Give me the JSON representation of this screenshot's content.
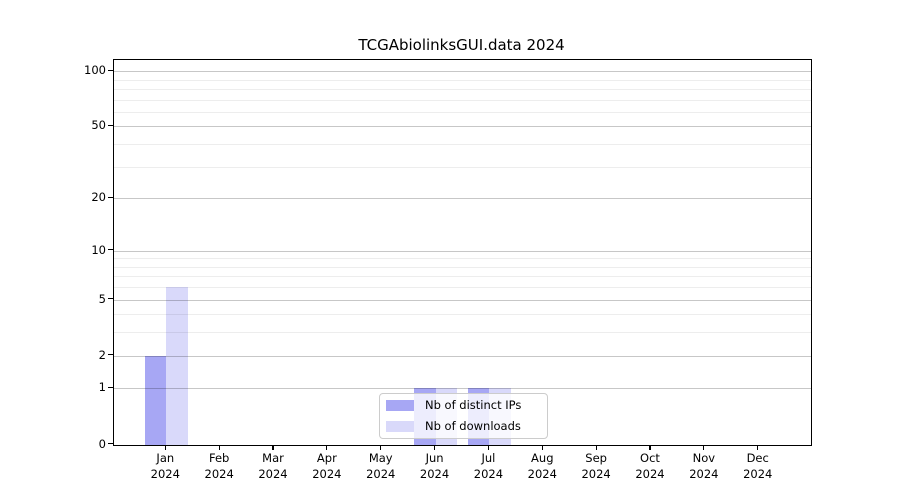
{
  "chart_data": {
    "type": "bar",
    "title": "TCGAbiolinksGUI.data 2024",
    "categories": [
      "Jan",
      "Feb",
      "Mar",
      "Apr",
      "May",
      "Jun",
      "Jul",
      "Aug",
      "Sep",
      "Oct",
      "Nov",
      "Dec"
    ],
    "x_year": "2024",
    "series": [
      {
        "name": "Nb of distinct IPs",
        "color": "#a7a7f4",
        "values": [
          2,
          0,
          0,
          0,
          0,
          1,
          1,
          0,
          0,
          0,
          0,
          0
        ]
      },
      {
        "name": "Nb of downloads",
        "color": "#d9d9fa",
        "values": [
          6,
          0,
          0,
          0,
          0,
          1,
          1,
          0,
          0,
          0,
          0,
          0
        ]
      }
    ],
    "xlabel": "",
    "ylabel": "",
    "y_scale": "log10(1+v)",
    "ylim": [
      0,
      115
    ],
    "y_major_ticks": [
      0,
      1,
      2,
      5,
      10,
      20,
      50,
      100
    ],
    "y_minor_ticks": [
      3,
      4,
      6,
      7,
      8,
      9,
      30,
      40,
      60,
      70,
      80,
      90
    ],
    "grid": true,
    "legend_position": "lower center"
  }
}
